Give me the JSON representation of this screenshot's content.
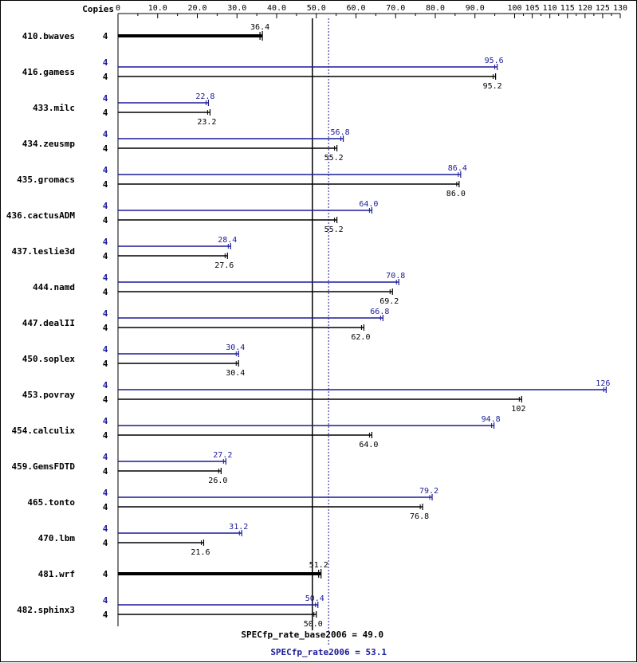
{
  "chart_data": {
    "type": "bar",
    "header_label": "Copies",
    "x_ticks": [
      "0",
      "10.0",
      "20.0",
      "30.0",
      "40.0",
      "50.0",
      "60.0",
      "70.0",
      "80.0",
      "90.0",
      "100",
      "105",
      "110",
      "115",
      "120",
      "125",
      "130"
    ],
    "xlim": [
      0,
      130
    ],
    "series": [
      {
        "name": "SPECfp_rate2006",
        "color": "#1a1a99"
      },
      {
        "name": "SPECfp_rate_base2006",
        "color": "#000000"
      }
    ],
    "benchmarks": [
      {
        "name": "410.bwaves",
        "base_copies": "4",
        "base": 36.4,
        "base_label": "36.4"
      },
      {
        "name": "416.gamess",
        "peak_copies": "4",
        "peak": 95.6,
        "peak_label": "95.6",
        "base_copies": "4",
        "base": 95.2,
        "base_label": "95.2"
      },
      {
        "name": "433.milc",
        "peak_copies": "4",
        "peak": 22.8,
        "peak_label": "22.8",
        "base_copies": "4",
        "base": 23.2,
        "base_label": "23.2"
      },
      {
        "name": "434.zeusmp",
        "peak_copies": "4",
        "peak": 56.8,
        "peak_label": "56.8",
        "base_copies": "4",
        "base": 55.2,
        "base_label": "55.2"
      },
      {
        "name": "435.gromacs",
        "peak_copies": "4",
        "peak": 86.4,
        "peak_label": "86.4",
        "base_copies": "4",
        "base": 86.0,
        "base_label": "86.0"
      },
      {
        "name": "436.cactusADM",
        "peak_copies": "4",
        "peak": 64.0,
        "peak_label": "64.0",
        "base_copies": "4",
        "base": 55.2,
        "base_label": "55.2"
      },
      {
        "name": "437.leslie3d",
        "peak_copies": "4",
        "peak": 28.4,
        "peak_label": "28.4",
        "base_copies": "4",
        "base": 27.6,
        "base_label": "27.6"
      },
      {
        "name": "444.namd",
        "peak_copies": "4",
        "peak": 70.8,
        "peak_label": "70.8",
        "base_copies": "4",
        "base": 69.2,
        "base_label": "69.2"
      },
      {
        "name": "447.dealII",
        "peak_copies": "4",
        "peak": 66.8,
        "peak_label": "66.8",
        "base_copies": "4",
        "base": 62.0,
        "base_label": "62.0"
      },
      {
        "name": "450.soplex",
        "peak_copies": "4",
        "peak": 30.4,
        "peak_label": "30.4",
        "base_copies": "4",
        "base": 30.4,
        "base_label": "30.4"
      },
      {
        "name": "453.povray",
        "peak_copies": "4",
        "peak": 126,
        "peak_label": "126",
        "base_copies": "4",
        "base": 102,
        "base_label": "102"
      },
      {
        "name": "454.calculix",
        "peak_copies": "4",
        "peak": 94.8,
        "peak_label": "94.8",
        "base_copies": "4",
        "base": 64.0,
        "base_label": "64.0"
      },
      {
        "name": "459.GemsFDTD",
        "peak_copies": "4",
        "peak": 27.2,
        "peak_label": "27.2",
        "base_copies": "4",
        "base": 26.0,
        "base_label": "26.0"
      },
      {
        "name": "465.tonto",
        "peak_copies": "4",
        "peak": 79.2,
        "peak_label": "79.2",
        "base_copies": "4",
        "base": 76.8,
        "base_label": "76.8"
      },
      {
        "name": "470.lbm",
        "peak_copies": "4",
        "peak": 31.2,
        "peak_label": "31.2",
        "base_copies": "4",
        "base": 21.6,
        "base_label": "21.6"
      },
      {
        "name": "481.wrf",
        "base_copies": "4",
        "base": 51.2,
        "base_label": "51.2"
      },
      {
        "name": "482.sphinx3",
        "peak_copies": "4",
        "peak": 50.4,
        "peak_label": "50.4",
        "base_copies": "4",
        "base": 50.0,
        "base_label": "50.0"
      }
    ],
    "base_reference": {
      "value": 49.0,
      "label": "SPECfp_rate_base2006 = 49.0"
    },
    "peak_reference": {
      "value": 53.1,
      "label": "SPECfp_rate2006 = 53.1"
    },
    "grid": false
  }
}
